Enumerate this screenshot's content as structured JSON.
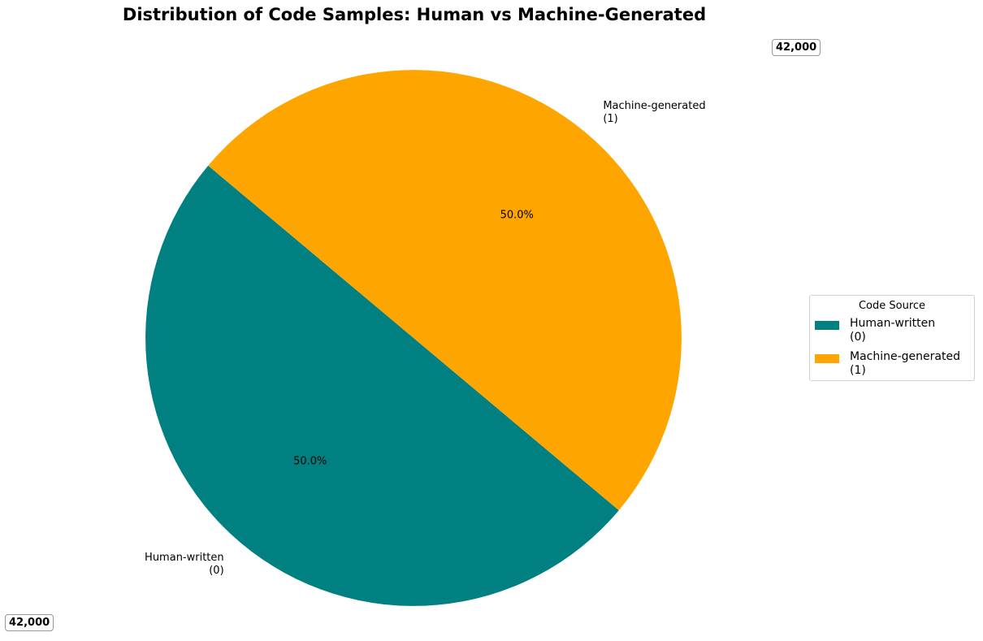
{
  "chart_data": {
    "type": "pie",
    "title": "Distribution of Code Samples: Human vs Machine-Generated",
    "slices": [
      {
        "label": "Human-written\n(0)",
        "value": 42000,
        "percent_label": "50.0%",
        "count_label": "42,000",
        "color": "#008080"
      },
      {
        "label": "Machine-generated\n(1)",
        "value": 42000,
        "percent_label": "50.0%",
        "count_label": "42,000",
        "color": "#FFA500"
      }
    ],
    "start_angle_deg": 140,
    "legend": {
      "title": "Code Source",
      "placement": "right",
      "entries": [
        "Human-written\n(0)",
        "Machine-generated\n(1)"
      ]
    }
  }
}
